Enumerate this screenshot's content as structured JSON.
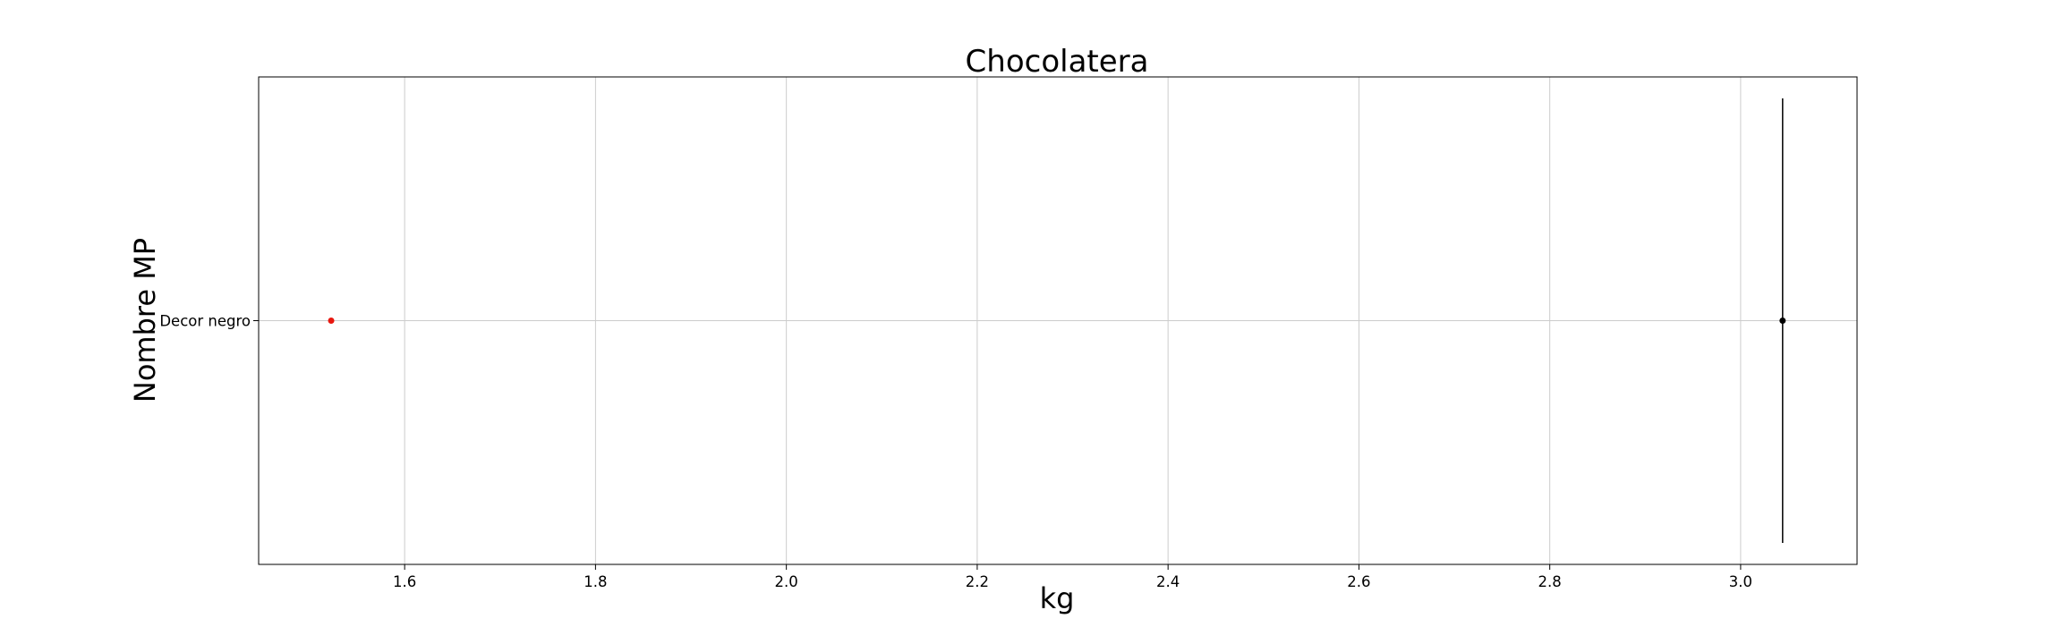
{
  "chart_data": {
    "type": "scatter",
    "title": "Chocolatera",
    "xlabel": "kg",
    "ylabel": "Nombre MP",
    "xlim": [
      1.447,
      3.122
    ],
    "x_ticks": [
      1.6,
      1.8,
      2.0,
      2.2,
      2.4,
      2.6,
      2.8,
      3.0
    ],
    "x_tick_labels": [
      "1.6",
      "1.8",
      "2.0",
      "2.2",
      "2.4",
      "2.6",
      "2.8",
      "3.0"
    ],
    "categories": [
      "Decor negro"
    ],
    "grid": true,
    "series": [
      {
        "color": "#e8170f",
        "points": [
          {
            "category": "Decor negro",
            "x": 1.523
          }
        ]
      },
      {
        "color": "#000000",
        "points": [
          {
            "category": "Decor negro",
            "x": 3.044
          }
        ]
      }
    ],
    "reference_line": {
      "x": 3.044,
      "color": "#000000"
    }
  }
}
